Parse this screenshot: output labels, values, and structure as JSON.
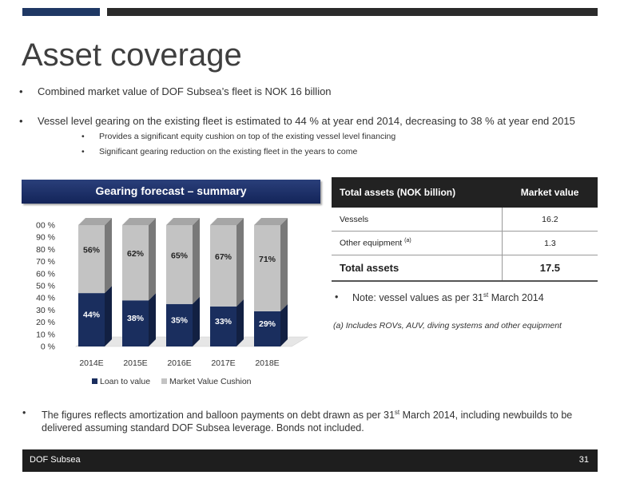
{
  "title": "Asset coverage",
  "bullets": [
    "Combined market value of DOF Subsea’s fleet is NOK 16 billion",
    "Vessel level gearing on the existing fleet is estimated to 44 % at year end 2014, decreasing to 38 % at year end 2015"
  ],
  "sub_bullets": [
    "Provides a significant equity cushion on top of the existing vessel level financing",
    "Significant gearing reduction on the existing fleet in the years to come"
  ],
  "banner": "Gearing forecast – summary",
  "table": {
    "header_left": "Total assets (NOK billion)",
    "header_right": "Market value",
    "rows": [
      {
        "label": "Vessels",
        "sup": "",
        "value": "16.2"
      },
      {
        "label": "Other equipment",
        "sup": "(a)",
        "value": "1.3"
      }
    ],
    "total_label": "Total assets",
    "total_value": "17.5"
  },
  "note": {
    "pre": "Note: vessel values as per 31",
    "sup": "st",
    "post": " March 2014"
  },
  "footnote": "(a) Includes ROVs, AUV, diving systems and other equipment",
  "bottom": {
    "pre": "The figures reflects amortization and balloon payments on debt drawn as per 31",
    "sup": "st",
    "post": " March 2014, including newbuilds to be delivered assuming standard DOF Subsea leverage. Bonds not included."
  },
  "footer": {
    "left": "DOF Subsea",
    "page": "31"
  },
  "colors": {
    "loan": "#1a2e5e",
    "cushion": "#c3c3c3",
    "header": "#222222"
  },
  "chart_data": {
    "type": "bar",
    "stacked": true,
    "categories": [
      "2014E",
      "2015E",
      "2016E",
      "2017E",
      "2018E"
    ],
    "series": [
      {
        "name": "Loan to value",
        "values": [
          44,
          38,
          35,
          33,
          29
        ],
        "labels": [
          "44%",
          "38%",
          "35%",
          "33%",
          "29%"
        ]
      },
      {
        "name": "Market Value Cushion",
        "values": [
          56,
          62,
          65,
          67,
          71
        ],
        "labels": [
          "56%",
          "62%",
          "65%",
          "67%",
          "71%"
        ]
      }
    ],
    "yticks": [
      "0 %",
      "10 %",
      "20 %",
      "30 %",
      "40 %",
      "50 %",
      "60 %",
      "70 %",
      "80 %",
      "90 %",
      "100 %"
    ],
    "ylim": [
      0,
      100
    ],
    "legend": "bottom",
    "grid": false
  }
}
